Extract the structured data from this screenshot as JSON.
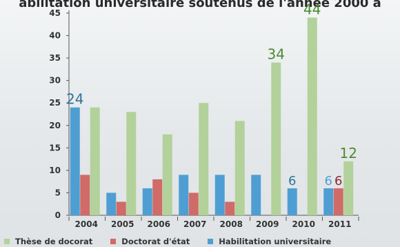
{
  "chart_data": {
    "type": "bar",
    "title": "abilitation universitaire soutenus de l'année 2000 à",
    "xlabel": "",
    "ylabel": "",
    "categories": [
      "2004",
      "2005",
      "2006",
      "2007",
      "2008",
      "2009",
      "2010",
      "2011"
    ],
    "ylim": [
      0,
      45
    ],
    "yticks": [
      0,
      5,
      10,
      15,
      20,
      25,
      30,
      35,
      40,
      45
    ],
    "grid": false,
    "legend_position": "bottom",
    "series": [
      {
        "name": "Habilitation universitaire",
        "color": "#4f9ed3",
        "values": [
          24,
          5,
          6,
          9,
          9,
          9,
          6,
          6
        ]
      },
      {
        "name": "Doctorat d'état",
        "color": "#d06b67",
        "values": [
          9,
          3,
          8,
          5,
          3,
          null,
          null,
          6
        ]
      },
      {
        "name": "Thèse de docorat",
        "color": "#b3d19a",
        "values": [
          24,
          23,
          18,
          25,
          21,
          34,
          44,
          12
        ]
      }
    ],
    "legend_order": [
      "Thèse de docorat",
      "Doctorat d'état",
      "Habilitation universitaire"
    ],
    "annotations": [
      {
        "text": "24",
        "category": "2004",
        "series": "Habilitation universitaire",
        "color": "#2f7399"
      },
      {
        "text": "34",
        "category": "2009",
        "series": "Thèse de docorat",
        "color": "#4c8a2f"
      },
      {
        "text": "44",
        "category": "2010",
        "series": "Thèse de docorat",
        "color": "#4c8a2f"
      },
      {
        "text": "6",
        "category": "2010",
        "series": "Habilitation universitaire",
        "color": "#2f7399"
      },
      {
        "text": "6",
        "category": "2011",
        "series": "Habilitation universitaire",
        "color": "#4f9ed3"
      },
      {
        "text": "6",
        "category": "2011",
        "series": "Doctorat d'état",
        "color": "#8a2a2a"
      },
      {
        "text": "12",
        "category": "2011",
        "series": "Thèse de docorat",
        "color": "#4c8a2f"
      }
    ]
  }
}
